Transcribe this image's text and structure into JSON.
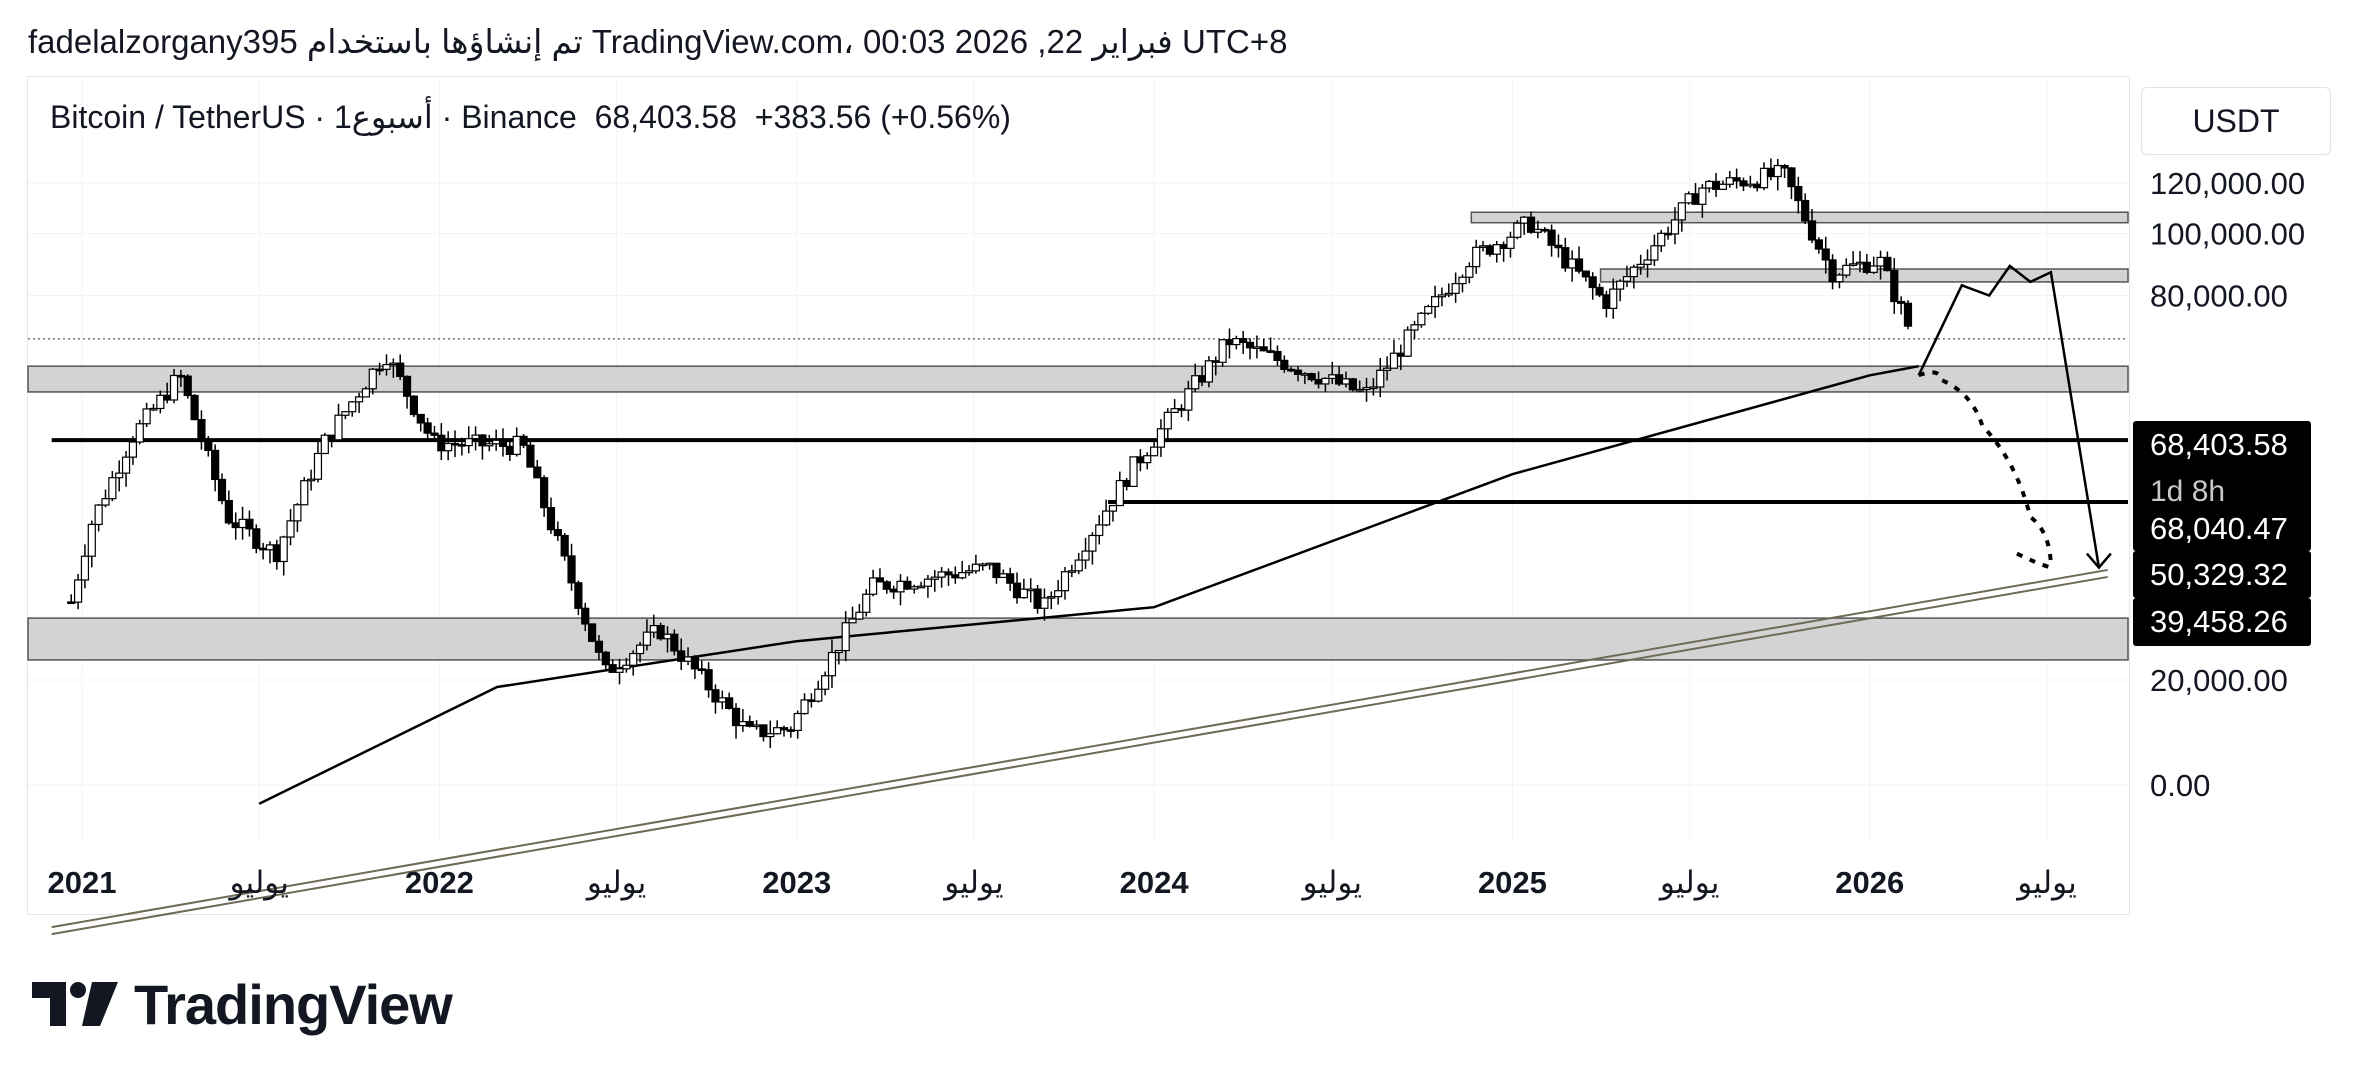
{
  "header": {
    "publish_line": "fadelalzorgany395 تم إنشاؤها باستخدام TradingView.com، 00:03 2026 ,22 فبراير UTC+8"
  },
  "symbol": {
    "name": "Bitcoin / TetherUS · 1أسبوع · Binance",
    "price": "68,403.58",
    "change": "+383.56 (+0.56%)"
  },
  "currency": "USDT",
  "branding": {
    "name": "TradingView"
  },
  "colors": {
    "background": "#ffffff",
    "ink": "#131722",
    "zone_fill": "#d3d3d3",
    "grid": "#f0f3fa",
    "label_bg": "#000000",
    "label_text": "#ffffff"
  },
  "chart_data": {
    "type": "candlestick",
    "title": "Bitcoin / TetherUS",
    "interval": "1 week",
    "exchange": "Binance",
    "y_axis": {
      "ticks": [
        "0.00",
        "20,000.00",
        "80,000.00",
        "100,000.00",
        "120,000.00"
      ],
      "tick_values": [
        0,
        20000,
        80000,
        100000,
        120000
      ],
      "scale": "log"
    },
    "x_axis": {
      "ticks": [
        "2021",
        "يوليو",
        "2022",
        "يوليو",
        "2023",
        "يوليو",
        "2024",
        "يوليو",
        "2025",
        "يوليو",
        "2026",
        "يوليو"
      ],
      "tick_dates": [
        "2021-01-01",
        "2021-07-01",
        "2022-01-01",
        "2022-07-01",
        "2023-01-01",
        "2023-07-01",
        "2024-01-01",
        "2024-07-01",
        "2025-01-01",
        "2025-07-01",
        "2026-01-01",
        "2026-07-01"
      ]
    },
    "price_labels": [
      {
        "value": "68,403.58",
        "sub": "1d 8h"
      },
      {
        "value": "68,040.47"
      },
      {
        "value": "50,329.32"
      },
      {
        "value": "39,458.26"
      }
    ],
    "weekly_closes": [
      {
        "date": "2020-12-21",
        "close": 26500
      },
      {
        "date": "2021-01-10",
        "close": 35000
      },
      {
        "date": "2021-02-21",
        "close": 48000
      },
      {
        "date": "2021-04-11",
        "close": 60000
      },
      {
        "date": "2021-05-30",
        "close": 36000
      },
      {
        "date": "2021-07-18",
        "close": 31500
      },
      {
        "date": "2021-09-05",
        "close": 47000
      },
      {
        "date": "2021-11-07",
        "close": 65000
      },
      {
        "date": "2021-12-26",
        "close": 47000
      },
      {
        "date": "2022-03-27",
        "close": 46500
      },
      {
        "date": "2022-06-19",
        "close": 20500
      },
      {
        "date": "2022-08-14",
        "close": 24000
      },
      {
        "date": "2022-11-13",
        "close": 16500
      },
      {
        "date": "2022-12-25",
        "close": 16800
      },
      {
        "date": "2023-03-19",
        "close": 28000
      },
      {
        "date": "2023-07-16",
        "close": 30000
      },
      {
        "date": "2023-09-10",
        "close": 26000
      },
      {
        "date": "2023-12-10",
        "close": 43000
      },
      {
        "date": "2024-03-17",
        "close": 68000
      },
      {
        "date": "2024-08-04",
        "close": 56000
      },
      {
        "date": "2024-11-17",
        "close": 91000
      },
      {
        "date": "2025-01-19",
        "close": 104000
      },
      {
        "date": "2025-04-06",
        "close": 78000
      },
      {
        "date": "2025-07-13",
        "close": 118000
      },
      {
        "date": "2025-10-05",
        "close": 124000
      },
      {
        "date": "2025-11-23",
        "close": 87000
      },
      {
        "date": "2026-01-11",
        "close": 91000
      },
      {
        "date": "2026-02-15",
        "close": 68403.58
      }
    ],
    "moving_average": [
      {
        "date": "2021-07-01",
        "value": 12800
      },
      {
        "date": "2022-03-01",
        "value": 19500
      },
      {
        "date": "2023-01-01",
        "value": 23000
      },
      {
        "date": "2024-01-01",
        "value": 26000
      },
      {
        "date": "2025-01-01",
        "value": 42000
      },
      {
        "date": "2026-01-01",
        "value": 60000
      },
      {
        "date": "2026-02-20",
        "value": 62000
      }
    ],
    "zones": [
      {
        "name": "upper",
        "from": 104000,
        "to": 108000
      },
      {
        "name": "middle",
        "from": 84000,
        "to": 88000
      },
      {
        "name": "current",
        "from": 56500,
        "to": 62000
      },
      {
        "name": "lower",
        "from": 21500,
        "to": 25000
      }
    ],
    "horizontal_lines": [
      {
        "value": 47500,
        "from": "2020-12-01"
      },
      {
        "value": 38000,
        "from": "2023-11-15"
      }
    ],
    "trendline": {
      "from_date": "2020-12-01",
      "from_value": 8000,
      "to_date": "2026-09-01",
      "to_value": 29000
    },
    "projection_up": [
      {
        "date": "2026-02-20",
        "value": 60000
      },
      {
        "date": "2026-04-05",
        "value": 83000
      },
      {
        "date": "2026-05-03",
        "value": 80000
      },
      {
        "date": "2026-05-24",
        "value": 89000
      },
      {
        "date": "2026-06-14",
        "value": 84000
      },
      {
        "date": "2026-07-05",
        "value": 87000
      },
      {
        "date": "2026-08-23",
        "value": 30000
      }
    ],
    "projection_down": [
      {
        "date": "2026-02-20",
        "value": 60000
      },
      {
        "date": "2026-03-15",
        "value": 59000
      },
      {
        "date": "2026-04-26",
        "value": 50000
      },
      {
        "date": "2026-06-14",
        "value": 36000
      },
      {
        "date": "2026-07-05",
        "value": 30000
      }
    ]
  }
}
